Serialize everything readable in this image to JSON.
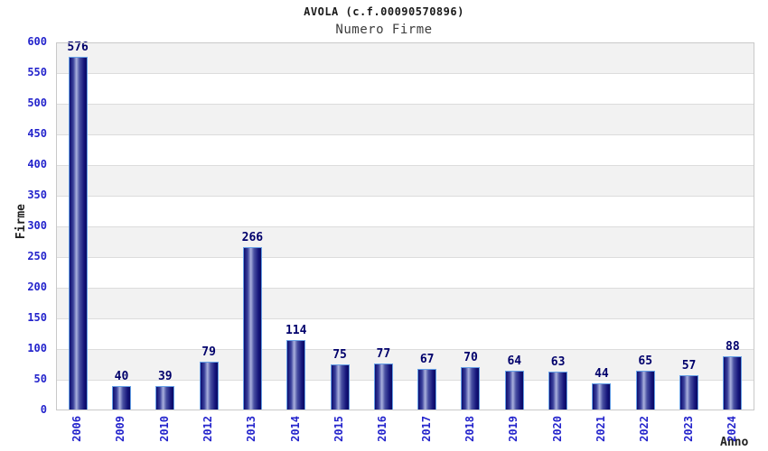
{
  "chart_data": {
    "type": "bar",
    "title": "AVOLA (c.f.00090570896)",
    "subtitle": "Numero Firme",
    "xlabel": "Anno",
    "ylabel": "Firme",
    "categories": [
      "2006",
      "2009",
      "2010",
      "2012",
      "2013",
      "2014",
      "2015",
      "2016",
      "2017",
      "2018",
      "2019",
      "2020",
      "2021",
      "2022",
      "2023",
      "2024"
    ],
    "values": [
      576,
      40,
      39,
      79,
      266,
      114,
      75,
      77,
      67,
      70,
      64,
      63,
      44,
      65,
      57,
      88
    ],
    "ylim": [
      0,
      600
    ],
    "y_ticks": [
      0,
      50,
      100,
      150,
      200,
      250,
      300,
      350,
      400,
      450,
      500,
      550,
      600
    ],
    "grid": "horizontal gridlines with alternating gray/white bands",
    "legend": "none",
    "colors": {
      "tick_label_blue": "#2424cc",
      "value_label_navy": "#00006b",
      "bar_border_lightblue": "#66a0e6",
      "bar_gradient_dark": "#0d0d70",
      "bar_gradient_light": "#aab1de",
      "band_gray": "#f2f2f2",
      "gridline": "#dcdcdc",
      "plot_border": "#c9c9c9",
      "title_color": "#1a1a1a",
      "subtitle_color": "#3d3d3d"
    }
  }
}
